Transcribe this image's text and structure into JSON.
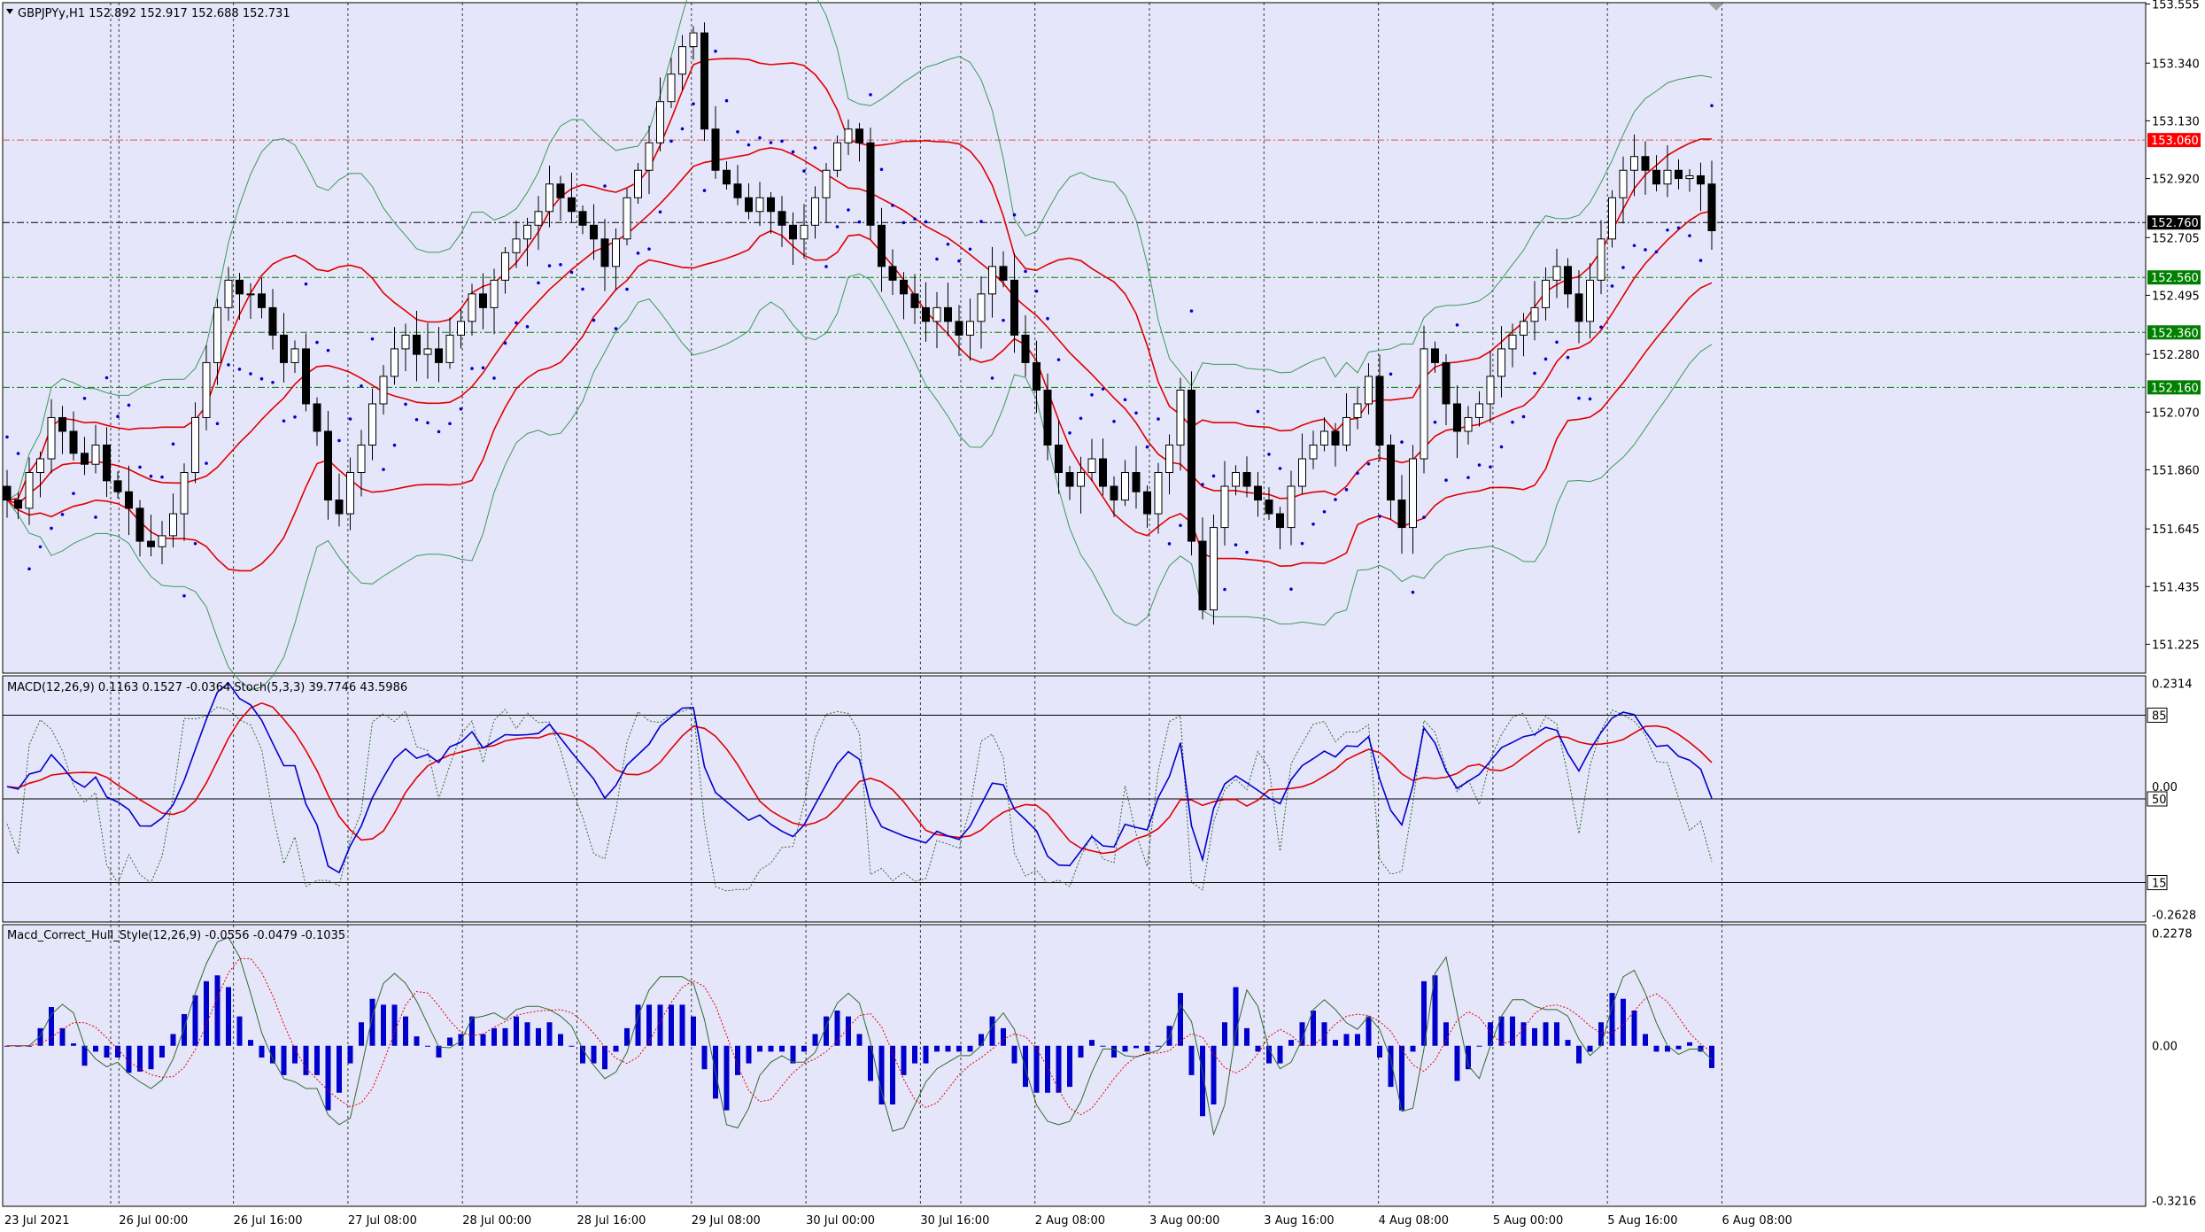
{
  "main": {
    "title": "GBPJPYy,H1  152.892 152.917 152.688 152.731",
    "price_axis": [
      "153.555",
      "153.340",
      "153.130",
      "152.920",
      "152.705",
      "152.495",
      "152.280",
      "152.070",
      "151.860",
      "151.645",
      "151.435",
      "151.225"
    ],
    "ylim": [
      151.12,
      153.56
    ],
    "levels": [
      {
        "price": 153.06,
        "label": "153.060",
        "color": "#ff0000",
        "line": "#e05050"
      },
      {
        "price": 152.76,
        "label": "152.760",
        "color": "#000000",
        "line": "#000000"
      },
      {
        "price": 152.56,
        "label": "152.560",
        "color": "#008000",
        "line": "#008000"
      },
      {
        "price": 152.36,
        "label": "152.360",
        "color": "#008000",
        "line": "#008000"
      },
      {
        "price": 152.16,
        "label": "152.160",
        "color": "#008000",
        "line": "#008000"
      }
    ]
  },
  "panel2": {
    "title": "MACD(12,26,9) 0.1163 0.1527 -0.0364  Stoch(5,3,3) 39.7746 43.5986",
    "axis": [
      {
        "v": "0.2314",
        "r": 0.03
      },
      {
        "v": "85",
        "r": 0.16,
        "box": true
      },
      {
        "v": "0.00",
        "r": 0.45
      },
      {
        "v": "50",
        "r": 0.5,
        "box": true
      },
      {
        "v": "15",
        "r": 0.84,
        "box": true
      },
      {
        "v": "-0.2628",
        "r": 0.97
      }
    ]
  },
  "panel3": {
    "title": "Macd_Correct_Hull_Style(12,26,9) -0.0556 -0.0479 -0.1035",
    "axis": [
      {
        "v": "0.2278",
        "r": 0.03
      },
      {
        "v": "0.00",
        "r": 0.43
      },
      {
        "v": "-0.3216",
        "r": 0.98
      }
    ]
  },
  "time_axis": [
    "23 Jul 2021",
    "26 Jul 00:00",
    "26 Jul 16:00",
    "27 Jul 08:00",
    "28 Jul 00:00",
    "28 Jul 16:00",
    "29 Jul 08:00",
    "30 Jul 00:00",
    "30 Jul 16:00",
    "2 Aug 08:00",
    "3 Aug 00:00",
    "3 Aug 16:00",
    "4 Aug 08:00",
    "5 Aug 00:00",
    "5 Aug 16:00",
    "6 Aug 08:00"
  ],
  "chart_data": {
    "type": "candlestick",
    "symbol": "GBPJPYy",
    "timeframe": "H1",
    "close_path": [
      151.75,
      151.72,
      151.85,
      151.9,
      152.05,
      152.0,
      151.92,
      151.88,
      151.95,
      151.82,
      151.78,
      151.72,
      151.6,
      151.58,
      151.62,
      151.7,
      151.85,
      152.05,
      152.25,
      152.45,
      152.55,
      152.5,
      152.5,
      152.45,
      152.35,
      152.25,
      152.3,
      152.1,
      152.0,
      151.75,
      151.7,
      151.85,
      151.95,
      152.1,
      152.2,
      152.3,
      152.35,
      152.28,
      152.3,
      152.25,
      152.35,
      152.4,
      152.5,
      152.45,
      152.55,
      152.65,
      152.7,
      152.75,
      152.8,
      152.9,
      152.85,
      152.8,
      152.75,
      152.7,
      152.6,
      152.7,
      152.85,
      152.95,
      153.05,
      153.2,
      153.3,
      153.4,
      153.45,
      153.1,
      152.95,
      152.9,
      152.85,
      152.8,
      152.85,
      152.8,
      152.75,
      152.7,
      152.75,
      152.85,
      152.95,
      153.05,
      153.1,
      153.05,
      152.75,
      152.6,
      152.55,
      152.5,
      152.45,
      152.4,
      152.45,
      152.4,
      152.35,
      152.4,
      152.5,
      152.6,
      152.55,
      152.35,
      152.25,
      152.15,
      151.95,
      151.85,
      151.8,
      151.85,
      151.9,
      151.8,
      151.75,
      151.85,
      151.78,
      151.7,
      151.85,
      151.95,
      152.15,
      151.6,
      151.35,
      151.65,
      151.8,
      151.85,
      151.8,
      151.75,
      151.7,
      151.65,
      151.8,
      151.9,
      151.95,
      152.0,
      151.95,
      152.05,
      152.1,
      152.2,
      151.95,
      151.75,
      151.65,
      151.9,
      152.3,
      152.25,
      152.1,
      152.0,
      152.05,
      152.1,
      152.2,
      152.3,
      152.35,
      152.4,
      152.45,
      152.55,
      152.6,
      152.5,
      152.4,
      152.55,
      152.7,
      152.85,
      152.95,
      153.0,
      152.95,
      152.9,
      152.95,
      152.92,
      152.93,
      152.9,
      152.73
    ]
  }
}
